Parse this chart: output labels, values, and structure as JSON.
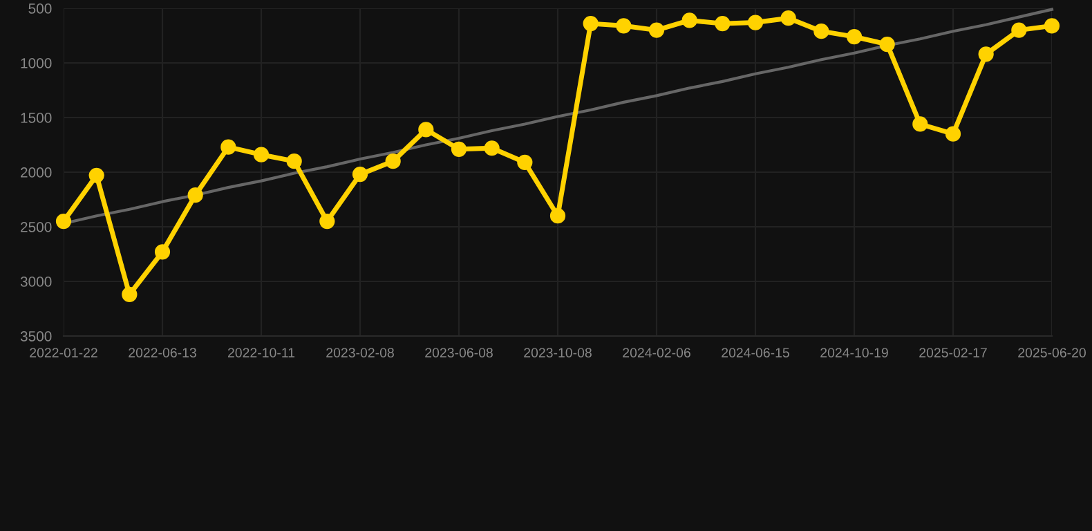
{
  "chart_data": {
    "type": "line",
    "categories": [
      "2022-01-22",
      null,
      null,
      "2022-06-13",
      null,
      null,
      "2022-10-11",
      null,
      null,
      "2023-02-08",
      null,
      null,
      "2023-06-08",
      null,
      null,
      "2023-10-08",
      null,
      null,
      "2024-02-06",
      null,
      null,
      "2024-06-15",
      null,
      null,
      "2024-10-19",
      null,
      null,
      "2025-02-17",
      null,
      null,
      "2025-06-20"
    ],
    "series": [
      {
        "color": "#ffd200",
        "marker": "circle",
        "values": [
          2450,
          2030,
          3120,
          2730,
          2210,
          1770,
          1840,
          1900,
          2450,
          2020,
          1900,
          1610,
          1790,
          1780,
          1910,
          2400,
          640,
          660,
          700,
          610,
          640,
          630,
          590,
          710,
          760,
          830,
          1560,
          1650,
          920,
          700,
          660
        ]
      },
      {
        "type": "line",
        "color": "#666666",
        "marker": "none",
        "values": [
          2470,
          2400,
          2340,
          2270,
          2210,
          2140,
          2080,
          2010,
          1950,
          1880,
          1820,
          1750,
          1690,
          1620,
          1560,
          1490,
          1430,
          1360,
          1300,
          1230,
          1170,
          1100,
          1040,
          970,
          910,
          840,
          780,
          710,
          650,
          580,
          510
        ]
      }
    ],
    "ylim": [
      3500,
      500
    ],
    "yticks": [
      500,
      1000,
      1500,
      2000,
      2500,
      3000,
      3500
    ],
    "grid": true
  }
}
